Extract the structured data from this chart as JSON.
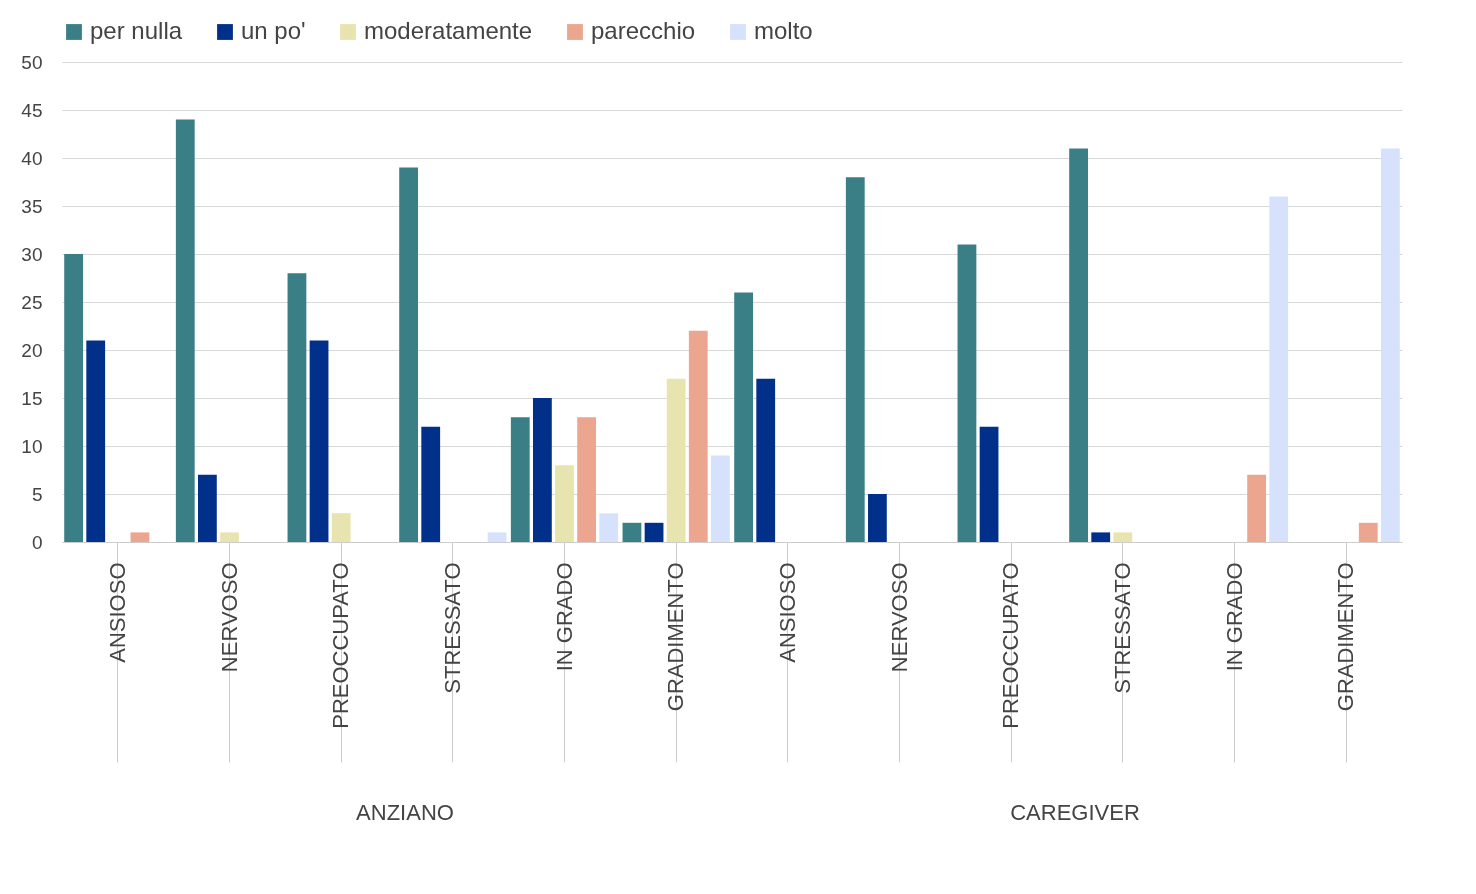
{
  "chart_data": {
    "type": "bar",
    "categories": [
      "ANSIOSO",
      "NERVOSO",
      "PREOCCUPATO",
      "STRESSATO",
      "IN GRADO",
      "GRADIMENTO",
      "ANSIOSO",
      "NERVOSO",
      "PREOCCUPATO",
      "STRESSATO",
      "IN GRADO",
      "GRADIMENTO"
    ],
    "series": [
      {
        "name": "per nulla",
        "color": "#3a7e86",
        "values": [
          30,
          44,
          28,
          39,
          13,
          2,
          26,
          38,
          31,
          41,
          0,
          0
        ]
      },
      {
        "name": "un po'",
        "color": "#00308a",
        "values": [
          21,
          7,
          21,
          12,
          15,
          2,
          17,
          5,
          12,
          1,
          0,
          0
        ]
      },
      {
        "name": "moderatamente",
        "color": "#e8e4b0",
        "values": [
          0,
          1,
          3,
          0,
          8,
          17,
          0,
          0,
          0,
          1,
          0,
          0
        ]
      },
      {
        "name": "parecchio",
        "color": "#eca58e",
        "values": [
          1,
          0,
          0,
          0,
          13,
          22,
          0,
          0,
          0,
          0,
          7,
          2
        ]
      },
      {
        "name": "molto",
        "color": "#d6e2fc",
        "values": [
          0,
          0,
          0,
          1,
          3,
          9,
          0,
          0,
          0,
          0,
          36,
          41
        ]
      }
    ],
    "ylim": [
      0,
      50
    ],
    "yticks": [
      0,
      5,
      10,
      15,
      20,
      25,
      30,
      35,
      40,
      45,
      50
    ],
    "grid": "y",
    "legend": "top",
    "annotations": [
      "ANZIANO",
      "CAREGIVER"
    ]
  }
}
